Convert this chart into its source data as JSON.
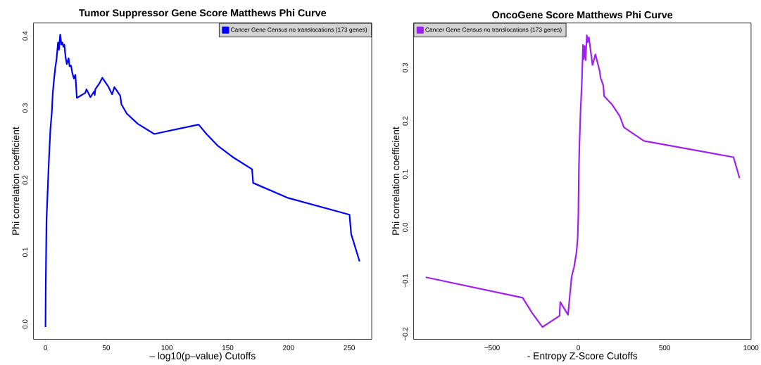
{
  "chart_data": [
    {
      "type": "line",
      "title": "Tumor Suppressor Gene Score Matthews Phi Curve",
      "xlabel": "– log10(p–value) Cutoffs",
      "ylabel": "Phi correlation coefficient",
      "xlim": [
        -9.9,
        268.5
      ],
      "ylim": [
        -0.021,
        0.418
      ],
      "xticks": [
        0,
        50,
        100,
        150,
        200,
        250
      ],
      "yticks": [
        {
          "value": 0,
          "label": "0.0"
        },
        0.1,
        0.2,
        0.3,
        0.4
      ],
      "legend": "top right",
      "line_style": "solid",
      "grid": false,
      "series": [
        {
          "name": "Cancer Gene Census no translocations (173 genes)",
          "color": "#0000ff",
          "x": [
            0,
            0.2,
            0.8,
            2.6,
            4,
            5.2,
            6,
            7.1,
            8,
            9.1,
            10.3,
            11.1,
            12.1,
            13.1,
            13.9,
            14.7,
            15.5,
            16.5,
            17.5,
            19,
            19.8,
            21,
            22,
            23.4,
            24.6,
            25.8,
            32.7,
            33.7,
            37,
            40,
            40.5,
            41,
            44.3,
            46.8,
            51.6,
            54.8,
            56.7,
            61.5,
            62.5,
            67,
            76,
            89.5,
            126,
            132.5,
            141.5,
            154,
            170,
            170.9,
            200,
            250.2,
            251.6,
            258.5
          ],
          "values": [
            -0.004,
            0.053,
            0.143,
            0.22,
            0.27,
            0.294,
            0.321,
            0.341,
            0.355,
            0.368,
            0.391,
            0.381,
            0.402,
            0.388,
            0.391,
            0.385,
            0.388,
            0.371,
            0.361,
            0.369,
            0.358,
            0.359,
            0.349,
            0.341,
            0.346,
            0.314,
            0.321,
            0.326,
            0.315,
            0.323,
            0.318,
            0.326,
            0.334,
            0.342,
            0.33,
            0.319,
            0.329,
            0.317,
            0.305,
            0.292,
            0.278,
            0.264,
            0.277,
            0.264,
            0.248,
            0.232,
            0.215,
            0.196,
            0.175,
            0.152,
            0.125,
            0.087
          ]
        }
      ]
    },
    {
      "type": "line",
      "title": "OncoGene Score Matthews Phi Curve",
      "xlabel": "- Entropy Z-Score Cutoffs",
      "ylabel": "Phi correlation coefficient",
      "xlim": [
        -955,
        1001
      ],
      "ylim": [
        -0.21,
        0.384
      ],
      "xticks": [
        {
          "value": -500,
          "label": "−500"
        },
        0,
        500,
        1000
      ],
      "yticks": [
        {
          "value": -0.2,
          "label": "−0.2"
        },
        {
          "value": -0.1,
          "label": "−0.1"
        },
        {
          "value": 0,
          "label": "0.0"
        },
        0.1,
        0.2,
        0.3
      ],
      "legend": "top left",
      "line_style": "solid",
      "grid": false,
      "series": [
        {
          "name": "Cancer Gene Census no translocations (173 genes)",
          "color": "#a020f0",
          "x": [
            -884,
            -323,
            -267,
            -208,
            -109,
            -105,
            -60,
            -39,
            -25,
            -11,
            -4,
            0,
            3,
            6,
            13,
            20,
            27,
            31,
            36,
            42,
            49,
            54,
            61,
            82,
            99,
            124,
            128,
            145,
            149,
            197,
            240,
            264,
            380,
            899,
            934
          ],
          "values": [
            -0.0935,
            -0.132,
            -0.161,
            -0.187,
            -0.166,
            -0.14,
            -0.164,
            -0.0926,
            -0.0744,
            -0.047,
            -0.02,
            0.025,
            0.107,
            0.153,
            0.221,
            0.271,
            0.343,
            0.316,
            0.341,
            0.314,
            0.361,
            0.348,
            0.357,
            0.305,
            0.325,
            0.293,
            0.282,
            0.266,
            0.247,
            0.23,
            0.209,
            0.188,
            0.1625,
            0.132,
            0.0926
          ]
        }
      ]
    }
  ]
}
